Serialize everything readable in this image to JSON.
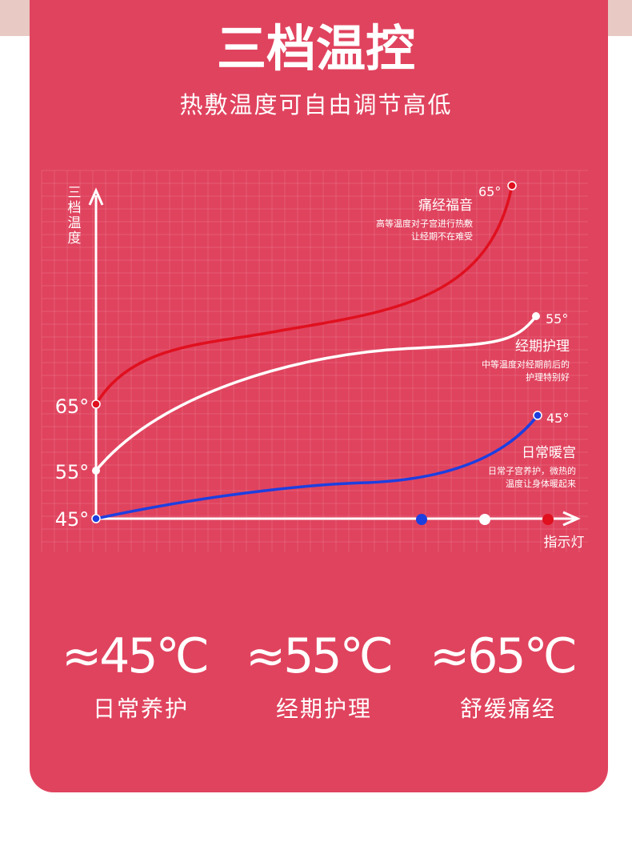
{
  "header": {
    "title": "三档温控",
    "subtitle": "热敷温度可自由调节高低"
  },
  "diagram": {
    "y_axis_label": "三档温度",
    "x_axis_label": "指示灯",
    "y_labels": [
      "65°",
      "55°",
      "45°"
    ],
    "levels": [
      {
        "temp": "65°",
        "name": "痛经福音",
        "desc": [
          "高等温度对子宫进行热敷",
          "让经期不在难受"
        ]
      },
      {
        "temp": "55°",
        "name": "经期护理",
        "desc": [
          "中等温度对经期前后的",
          "护理特别好"
        ]
      },
      {
        "temp": "45°",
        "name": "日常暖宫",
        "desc": [
          "日常子宫养护，微热的",
          "温度让身体暖起来"
        ]
      }
    ]
  },
  "modes": [
    {
      "temp": "≈45℃",
      "label": "日常养护"
    },
    {
      "temp": "≈55℃",
      "label": "经期护理"
    },
    {
      "temp": "≈65℃",
      "label": "舒缓痛经"
    }
  ]
}
